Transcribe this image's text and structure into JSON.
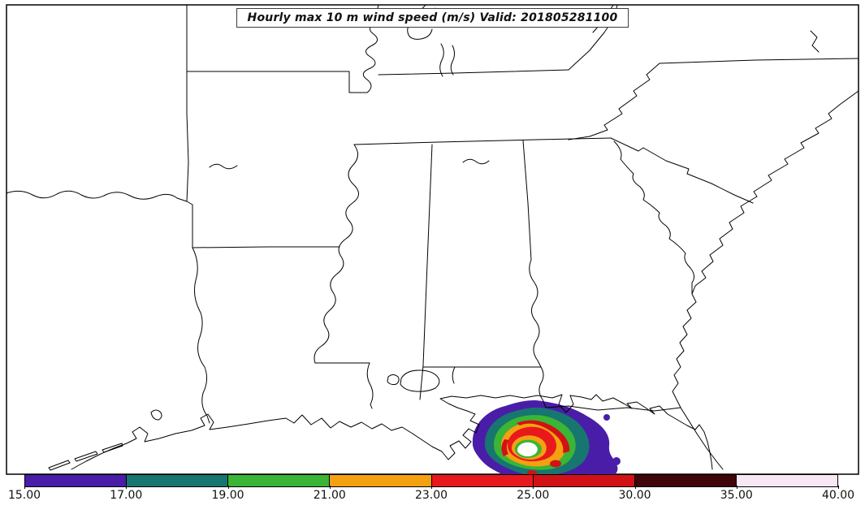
{
  "title": {
    "text": "Hourly max 10 m wind speed (m/s) Valid: 201805281100"
  },
  "colorbar": {
    "ticks": [
      "15.00",
      "17.00",
      "19.00",
      "21.00",
      "23.00",
      "25.00",
      "30.00",
      "35.00",
      "40.00"
    ],
    "colors": [
      "#4a1da8",
      "#17766f",
      "#3ab535",
      "#f5a011",
      "#e8191d",
      "#d21116",
      "#400508",
      "#f8e7f5"
    ]
  },
  "map_colors": {
    "background": "#ffffff",
    "outline": "#000000",
    "wind_15": "#4a1da8",
    "wind_17": "#17766f",
    "wind_19": "#3ab535",
    "wind_21": "#f5a011",
    "wind_23": "#e8191d",
    "wind_25": "#d21116",
    "eye": "#ffffff"
  },
  "chart_data": {
    "type": "heatmap",
    "title": "Hourly max 10 m wind speed (m/s) Valid: 201805281100",
    "variable": "hourly max 10 m wind speed",
    "units": "m/s",
    "valid_time": "201805281100",
    "colorbar_levels": [
      15.0,
      17.0,
      19.0,
      21.0,
      23.0,
      25.0,
      30.0,
      35.0,
      40.0
    ],
    "colorbar_colors": [
      "#4a1da8",
      "#17766f",
      "#3ab535",
      "#f5a011",
      "#e8191d",
      "#d21116",
      "#400508",
      "#f8e7f5"
    ],
    "legend_position": "bottom",
    "depicted_feature": "closed wind-speed contour maximum (15-30 m/s) with calm center, offshore of the Mississippi/Alabama Gulf coast over a base map of southeastern U.S. state outlines"
  }
}
